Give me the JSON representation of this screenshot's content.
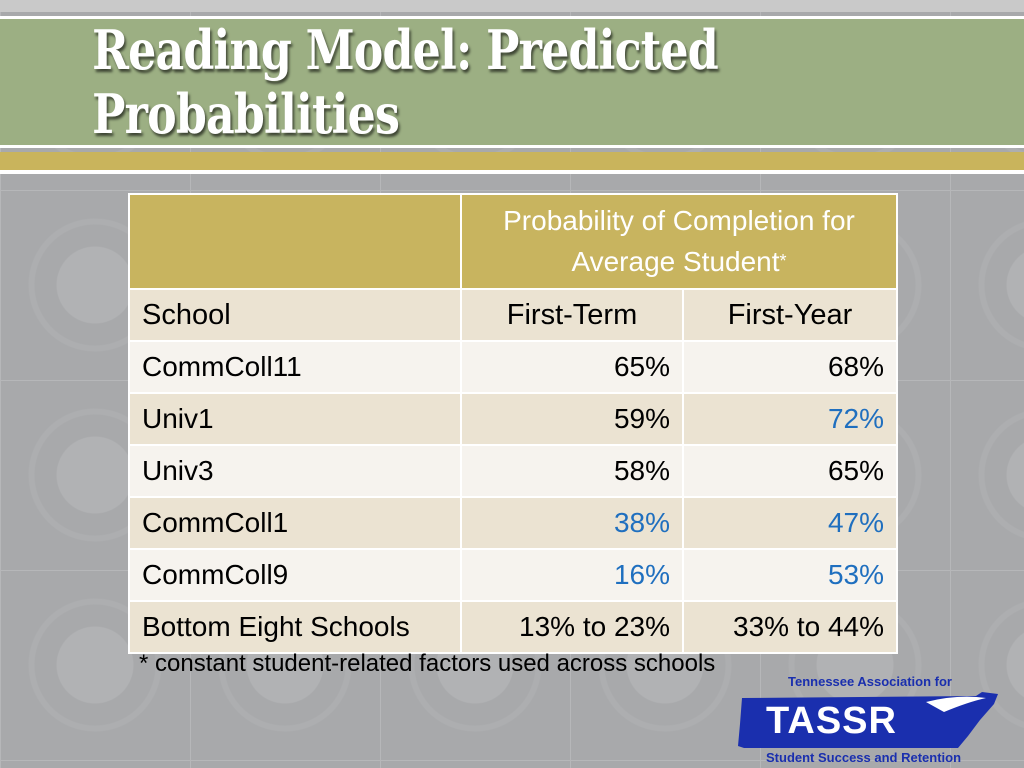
{
  "slide": {
    "title": "Reading Model: Predicted Probabilities"
  },
  "table": {
    "group_header": "Probability of Completion for Average Student",
    "group_header_mark": "*",
    "columns": [
      "School",
      "First-Term",
      "First-Year"
    ],
    "rows": [
      {
        "school": "CommColl11",
        "first_term": "65%",
        "first_year": "68%"
      },
      {
        "school": "Univ1",
        "first_term": "59%",
        "first_year": "72%"
      },
      {
        "school": "Univ3",
        "first_term": "58%",
        "first_year": "65%"
      },
      {
        "school": "CommColl1",
        "first_term": "38%",
        "first_year": "47%"
      },
      {
        "school": "CommColl9",
        "first_term": "16%",
        "first_year": "53%"
      },
      {
        "school": "Bottom Eight Schools",
        "first_term": "13% to 23%",
        "first_year": "33% to 44%"
      }
    ],
    "highlight_color": "#1f6fbf"
  },
  "footnote": "* constant student-related factors used across schools",
  "logo": {
    "top_text": "Tennessee Association for",
    "word": "TASSR",
    "bottom_text": "Student Success and Retention",
    "color": "#1a2fae"
  }
}
